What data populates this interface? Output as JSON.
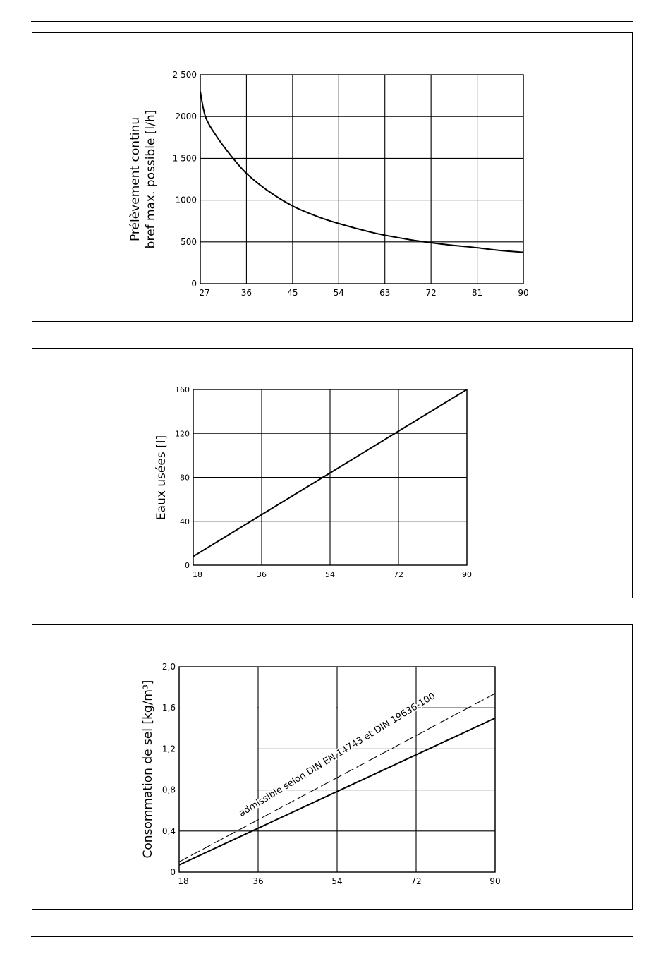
{
  "chart_data": [
    {
      "type": "line",
      "ylabel": [
        "Prélèvement continu",
        "bref max. possible [l/h]"
      ],
      "xlabel": "",
      "x_ticks": [
        "27",
        "36",
        "45",
        "54",
        "63",
        "72",
        "81",
        "90"
      ],
      "y_ticks": [
        "0",
        "500",
        "1000",
        "1 500",
        "2000",
        "2 500"
      ],
      "xlim": [
        27,
        90
      ],
      "ylim": [
        0,
        2500
      ],
      "grid": true,
      "series": [
        {
          "style": "solid",
          "x": [
            27,
            28,
            30,
            33,
            36,
            40,
            45,
            50,
            54,
            60,
            63,
            68,
            72,
            76,
            81,
            85,
            90
          ],
          "y": [
            2300,
            2000,
            1780,
            1530,
            1320,
            1120,
            930,
            800,
            720,
            620,
            580,
            525,
            490,
            460,
            430,
            400,
            375
          ]
        }
      ]
    },
    {
      "type": "line",
      "ylabel": "Eaux usées [l]",
      "xlabel": "",
      "x_ticks": [
        "18",
        "36",
        "54",
        "72",
        "90"
      ],
      "y_ticks": [
        "0",
        "40",
        "80",
        "120",
        "160"
      ],
      "xlim": [
        18,
        90
      ],
      "ylim": [
        0,
        160
      ],
      "grid": true,
      "series": [
        {
          "style": "solid",
          "x": [
            18,
            90
          ],
          "y": [
            8,
            160
          ]
        }
      ]
    },
    {
      "type": "line",
      "ylabel": "Consommation de sel [kg/m³]",
      "xlabel": "",
      "x_ticks": [
        "18",
        "36",
        "54",
        "72",
        "90"
      ],
      "y_ticks": [
        "0",
        "0,4",
        "0,8",
        "1,2",
        "1,6",
        "2,0"
      ],
      "xlim": [
        18,
        90
      ],
      "ylim": [
        0,
        2.0
      ],
      "grid": true,
      "annotation": "admissible selon DIN EN 14743 et DIN 19636-100",
      "series": [
        {
          "style": "dashed",
          "x": [
            18,
            90
          ],
          "y": [
            0.1,
            1.74
          ]
        },
        {
          "style": "solid",
          "x": [
            18,
            90
          ],
          "y": [
            0.07,
            1.5
          ]
        }
      ]
    }
  ]
}
